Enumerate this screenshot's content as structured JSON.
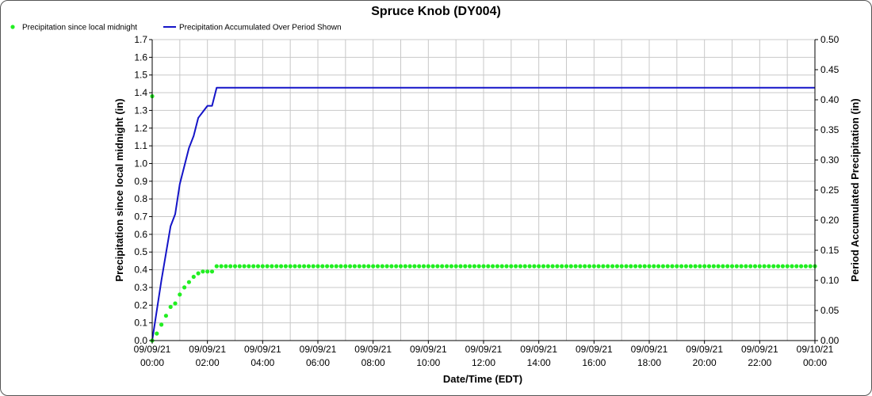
{
  "chart_data": {
    "type": "line",
    "title": "Spruce Knob (DY004)",
    "xlabel": "Date/Time (EDT)",
    "ylabel_left": "Precipitation since local midnight (in)",
    "ylabel_right": "Period Accumulated Precipitation (in)",
    "xlim_hours": [
      0,
      24
    ],
    "ylim_left": [
      0,
      1.7
    ],
    "ylim_right": [
      0,
      0.5
    ],
    "grid": true,
    "legend_position": "top-left",
    "x_ticks": [
      {
        "date": "09/09/21",
        "time": "00:00"
      },
      {
        "date": "09/09/21",
        "time": "02:00"
      },
      {
        "date": "09/09/21",
        "time": "04:00"
      },
      {
        "date": "09/09/21",
        "time": "06:00"
      },
      {
        "date": "09/09/21",
        "time": "08:00"
      },
      {
        "date": "09/09/21",
        "time": "10:00"
      },
      {
        "date": "09/09/21",
        "time": "12:00"
      },
      {
        "date": "09/09/21",
        "time": "14:00"
      },
      {
        "date": "09/09/21",
        "time": "16:00"
      },
      {
        "date": "09/09/21",
        "time": "18:00"
      },
      {
        "date": "09/09/21",
        "time": "20:00"
      },
      {
        "date": "09/09/21",
        "time": "22:00"
      },
      {
        "date": "09/10/21",
        "time": "00:00"
      }
    ],
    "y_ticks_left": [
      "0.0",
      "0.1",
      "0.2",
      "0.3",
      "0.4",
      "0.5",
      "0.6",
      "0.7",
      "0.8",
      "0.9",
      "1.0",
      "1.1",
      "1.2",
      "1.3",
      "1.4",
      "1.5",
      "1.6",
      "1.7"
    ],
    "y_ticks_right": [
      "0.00",
      "0.05",
      "0.10",
      "0.15",
      "0.20",
      "0.25",
      "0.30",
      "0.35",
      "0.40",
      "0.45",
      "0.50"
    ],
    "series": [
      {
        "name": "Precipitation since local midnight",
        "kind": "scatter",
        "axis": "left",
        "color": "#22ee22",
        "early_points": [
          {
            "t": "00:00",
            "y": 1.38
          },
          {
            "t": "00:00",
            "y": 0.0
          },
          {
            "t": "00:10",
            "y": 0.04
          },
          {
            "t": "00:20",
            "y": 0.09
          },
          {
            "t": "00:30",
            "y": 0.14
          },
          {
            "t": "00:40",
            "y": 0.19
          },
          {
            "t": "00:50",
            "y": 0.21
          },
          {
            "t": "01:00",
            "y": 0.26
          },
          {
            "t": "01:10",
            "y": 0.3
          },
          {
            "t": "01:20",
            "y": 0.33
          },
          {
            "t": "01:30",
            "y": 0.36
          },
          {
            "t": "01:40",
            "y": 0.38
          },
          {
            "t": "01:50",
            "y": 0.39
          },
          {
            "t": "02:00",
            "y": 0.39
          },
          {
            "t": "02:10",
            "y": 0.39
          },
          {
            "t": "02:20",
            "y": 0.42
          }
        ],
        "plateau": {
          "start": "02:20",
          "end": "24:00",
          "step_minutes": 10,
          "y": 0.42
        }
      },
      {
        "name": "Precipitation Accumulated Over Period Shown",
        "kind": "line",
        "axis": "right",
        "color": "#1414c8",
        "points": [
          {
            "t": "00:00",
            "y": 0.0
          },
          {
            "t": "00:20",
            "y": 0.1
          },
          {
            "t": "00:40",
            "y": 0.19
          },
          {
            "t": "00:50",
            "y": 0.21
          },
          {
            "t": "01:00",
            "y": 0.26
          },
          {
            "t": "01:20",
            "y": 0.32
          },
          {
            "t": "01:30",
            "y": 0.34
          },
          {
            "t": "01:40",
            "y": 0.37
          },
          {
            "t": "02:00",
            "y": 0.39
          },
          {
            "t": "02:10",
            "y": 0.39
          },
          {
            "t": "02:20",
            "y": 0.42
          },
          {
            "t": "24:00",
            "y": 0.42
          }
        ]
      }
    ]
  }
}
